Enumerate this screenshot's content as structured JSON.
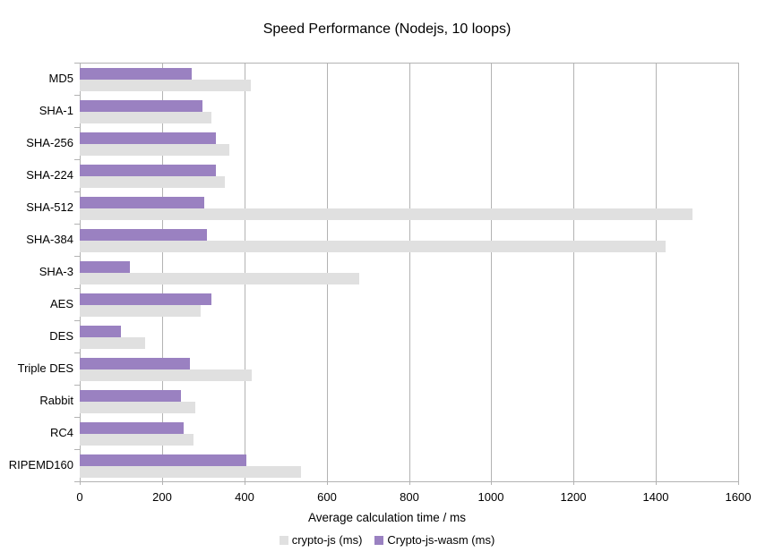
{
  "chart_data": {
    "type": "bar",
    "orientation": "horizontal",
    "title": "Speed Performance (Nodejs, 10 loops)",
    "xlabel": "Average calculation time / ms",
    "ylabel": "",
    "xlim": [
      0,
      1600
    ],
    "x_ticks": [
      0,
      200,
      400,
      600,
      800,
      1000,
      1200,
      1400,
      1600
    ],
    "grid": "vertical",
    "legend_position": "bottom",
    "categories": [
      "MD5",
      "SHA-1",
      "SHA-256",
      "SHA-224",
      "SHA-512",
      "SHA-384",
      "SHA-3",
      "AES",
      "DES",
      "Triple DES",
      "Rabbit",
      "RC4",
      "RIPEMD160"
    ],
    "series": [
      {
        "name": "crypto-js (ms)",
        "color": "#e0e0e0",
        "values": [
          415,
          320,
          363,
          353,
          1490,
          1424,
          680,
          293,
          158,
          418,
          280,
          277,
          537
        ]
      },
      {
        "name": "Crypto-js-wasm (ms)",
        "color": "#9a81c1",
        "values": [
          273,
          299,
          330,
          330,
          302,
          310,
          121,
          321,
          101,
          267,
          245,
          252,
          404
        ]
      }
    ],
    "colors": {
      "gridline": "#b3b3b3",
      "text": "#000000",
      "background": "#ffffff"
    }
  }
}
